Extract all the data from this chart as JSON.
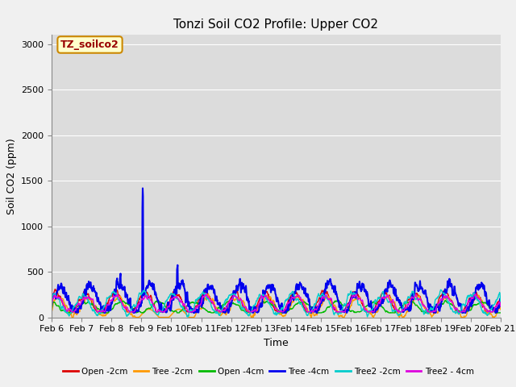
{
  "title": "Tonzi Soil CO2 Profile: Upper CO2",
  "xlabel": "Time",
  "ylabel": "Soil CO2 (ppm)",
  "ylim": [
    0,
    3100
  ],
  "yticks": [
    0,
    500,
    1000,
    1500,
    2000,
    2500,
    3000
  ],
  "plot_bg_color": "#dcdcdc",
  "fig_bg_color": "#f0f0f0",
  "legend_label": "TZ_soilco2",
  "legend_entries": [
    "Open -2cm",
    "Tree -2cm",
    "Open -4cm",
    "Tree -4cm",
    "Tree2 -2cm",
    "Tree2 - 4cm"
  ],
  "line_colors": [
    "#dd0000",
    "#ff9900",
    "#00bb00",
    "#0000ee",
    "#00cccc",
    "#dd00dd"
  ],
  "x_tick_labels": [
    "Feb 6",
    "Feb 7",
    "Feb 8",
    "Feb 9",
    "Feb 10",
    "Feb 11",
    "Feb 12",
    "Feb 13",
    "Feb 14",
    "Feb 15",
    "Feb 16",
    "Feb 17",
    "Feb 18",
    "Feb 19",
    "Feb 20",
    "Feb 21"
  ]
}
